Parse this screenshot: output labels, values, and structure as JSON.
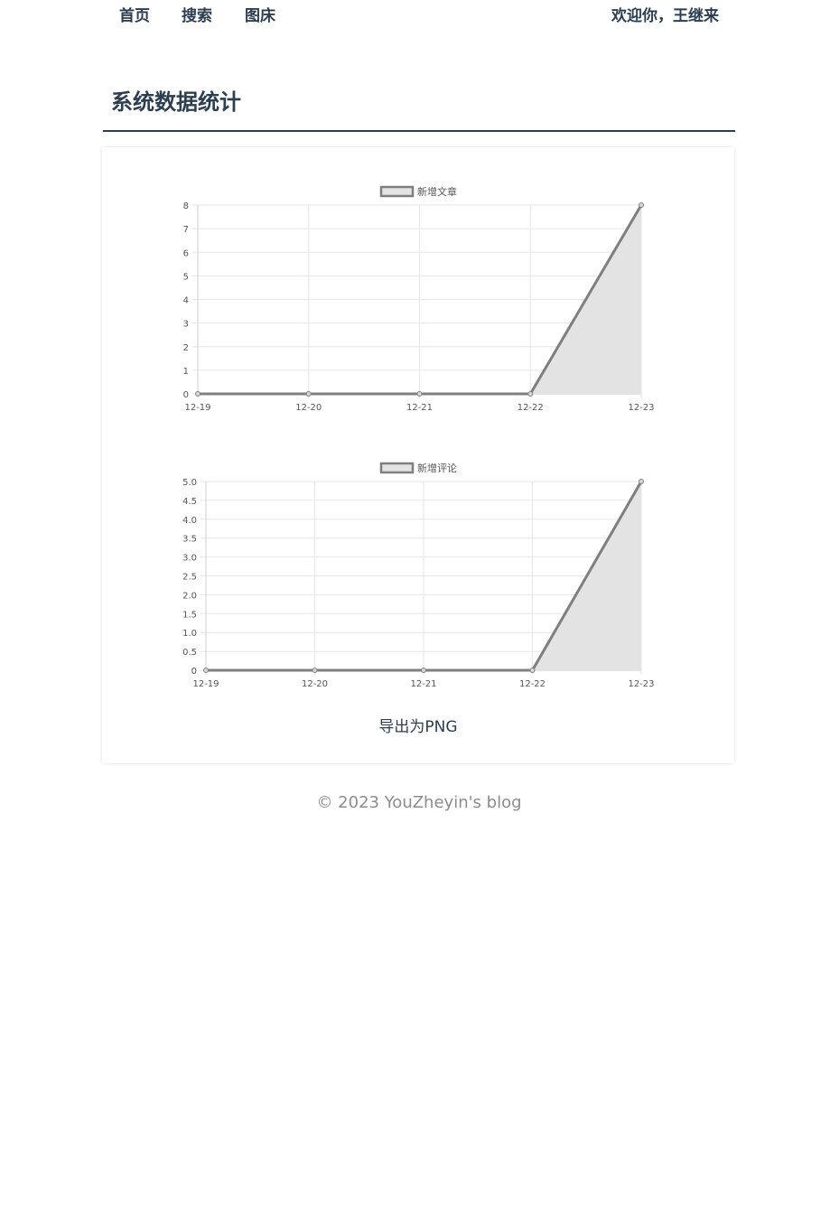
{
  "nav": {
    "items": [
      {
        "label": "首页"
      },
      {
        "label": "搜索"
      },
      {
        "label": "图床"
      }
    ],
    "welcome": "欢迎你，王继来"
  },
  "page": {
    "title": "系统数据统计"
  },
  "export_label": "导出为PNG",
  "footer": "© 2023 YouZheyin's blog",
  "colors": {
    "line": "#7f7f7f",
    "fill": "#e3e3e3",
    "grid": "#e6e6e6",
    "text": "#2c3e50",
    "tick": "#555555"
  },
  "chart_data": [
    {
      "type": "area",
      "legend": "新增文章",
      "categories": [
        "12-19",
        "12-20",
        "12-21",
        "12-22",
        "12-23"
      ],
      "series": [
        {
          "name": "新增文章",
          "values": [
            0,
            0,
            0,
            0,
            8
          ]
        }
      ],
      "ylim": [
        0,
        8
      ],
      "yticks": [
        "0",
        "1",
        "2",
        "3",
        "4",
        "5",
        "6",
        "7",
        "8"
      ],
      "grid": true,
      "legend_position": "top"
    },
    {
      "type": "area",
      "legend": "新增评论",
      "categories": [
        "12-19",
        "12-20",
        "12-21",
        "12-22",
        "12-23"
      ],
      "series": [
        {
          "name": "新增评论",
          "values": [
            0,
            0,
            0,
            0,
            5
          ]
        }
      ],
      "ylim": [
        0,
        5
      ],
      "yticks": [
        "0",
        "0.5",
        "1.0",
        "1.5",
        "2.0",
        "2.5",
        "3.0",
        "3.5",
        "4.0",
        "4.5",
        "5.0"
      ],
      "grid": true,
      "legend_position": "top"
    }
  ]
}
